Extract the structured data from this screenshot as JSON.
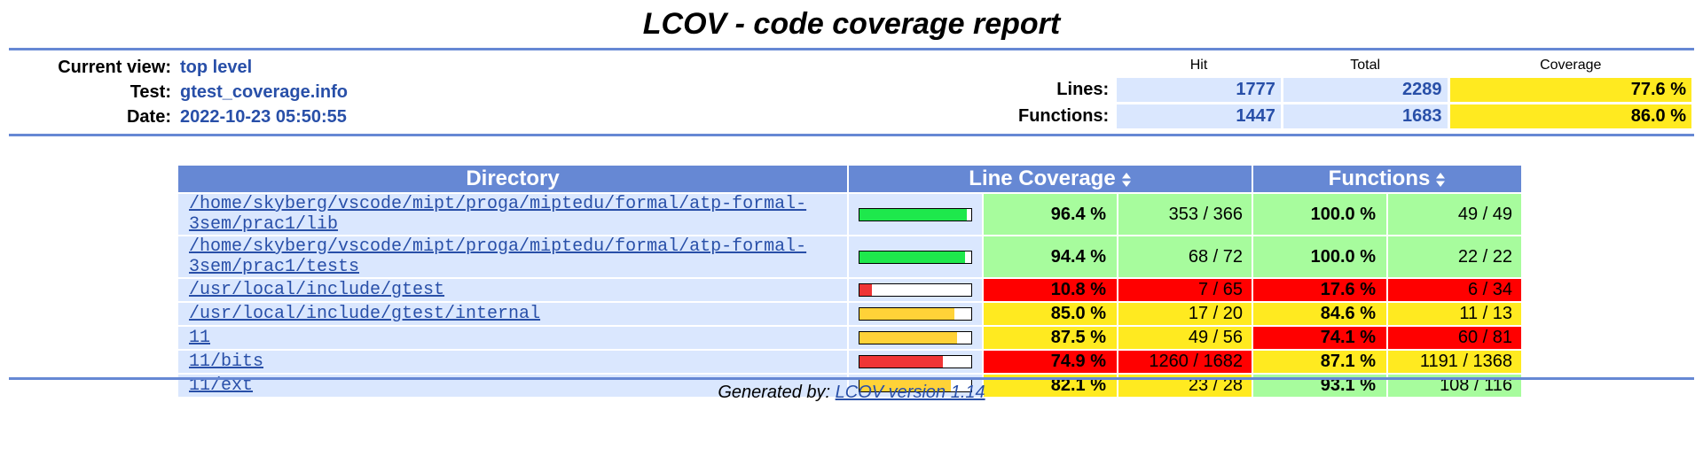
{
  "title": "LCOV - code coverage report",
  "header": {
    "current_view_label": "Current view:",
    "current_view_value": "top level",
    "test_label": "Test:",
    "test_value": "gtest_coverage.info",
    "date_label": "Date:",
    "date_value": "2022-10-23 05:50:55",
    "col_hit": "Hit",
    "col_total": "Total",
    "col_coverage": "Coverage",
    "lines_label": "Lines:",
    "lines_hit": "1777",
    "lines_total": "2289",
    "lines_coverage": "77.6 %",
    "functions_label": "Functions:",
    "functions_hit": "1447",
    "functions_total": "1683",
    "functions_coverage": "86.0 %"
  },
  "table": {
    "col_directory": "Directory",
    "col_line_coverage": "Line Coverage",
    "col_functions": "Functions",
    "rows": [
      {
        "dir": "/home/skyberg/vscode/mipt/proga/miptedu/formal/atp-formal-3sem/prac1/lib",
        "line_fraction": 0.964,
        "line_pct": "96.4 %",
        "line_cnt": "353 / 366",
        "line_level": "hi",
        "func_pct": "100.0 %",
        "func_cnt": "49 / 49",
        "func_level": "hi"
      },
      {
        "dir": "/home/skyberg/vscode/mipt/proga/miptedu/formal/atp-formal-3sem/prac1/tests",
        "line_fraction": 0.944,
        "line_pct": "94.4 %",
        "line_cnt": "68 / 72",
        "line_level": "hi",
        "func_pct": "100.0 %",
        "func_cnt": "22 / 22",
        "func_level": "hi"
      },
      {
        "dir": "/usr/local/include/gtest",
        "line_fraction": 0.108,
        "line_pct": "10.8 %",
        "line_cnt": "7 / 65",
        "line_level": "lo",
        "func_pct": "17.6 %",
        "func_cnt": "6 / 34",
        "func_level": "lo"
      },
      {
        "dir": "/usr/local/include/gtest/internal",
        "line_fraction": 0.85,
        "line_pct": "85.0 %",
        "line_cnt": "17 / 20",
        "line_level": "med",
        "func_pct": "84.6 %",
        "func_cnt": "11 / 13",
        "func_level": "med"
      },
      {
        "dir": "11",
        "line_fraction": 0.875,
        "line_pct": "87.5 %",
        "line_cnt": "49 / 56",
        "line_level": "med",
        "func_pct": "74.1 %",
        "func_cnt": "60 / 81",
        "func_level": "lo"
      },
      {
        "dir": "11/bits",
        "line_fraction": 0.749,
        "line_pct": "74.9 %",
        "line_cnt": "1260 / 1682",
        "line_level": "lo",
        "func_pct": "87.1 %",
        "func_cnt": "1191 / 1368",
        "func_level": "med"
      },
      {
        "dir": "11/ext",
        "line_fraction": 0.821,
        "line_pct": "82.1 %",
        "line_cnt": "23 / 28",
        "line_level": "med",
        "func_pct": "93.1 %",
        "func_cnt": "108 / 116",
        "func_level": "hi"
      }
    ]
  },
  "colors": {
    "hi_bg": "#a7fc9d",
    "med_bg": "#ffea20",
    "lo_bg": "#ff0000",
    "hi_bar": "#1ee84c",
    "med_bar": "#ffd238",
    "lo_bar": "#ef3535",
    "header_blue": "#6688d4"
  },
  "footer": {
    "prefix": "Generated by: ",
    "link": "LCOV version 1.14"
  }
}
